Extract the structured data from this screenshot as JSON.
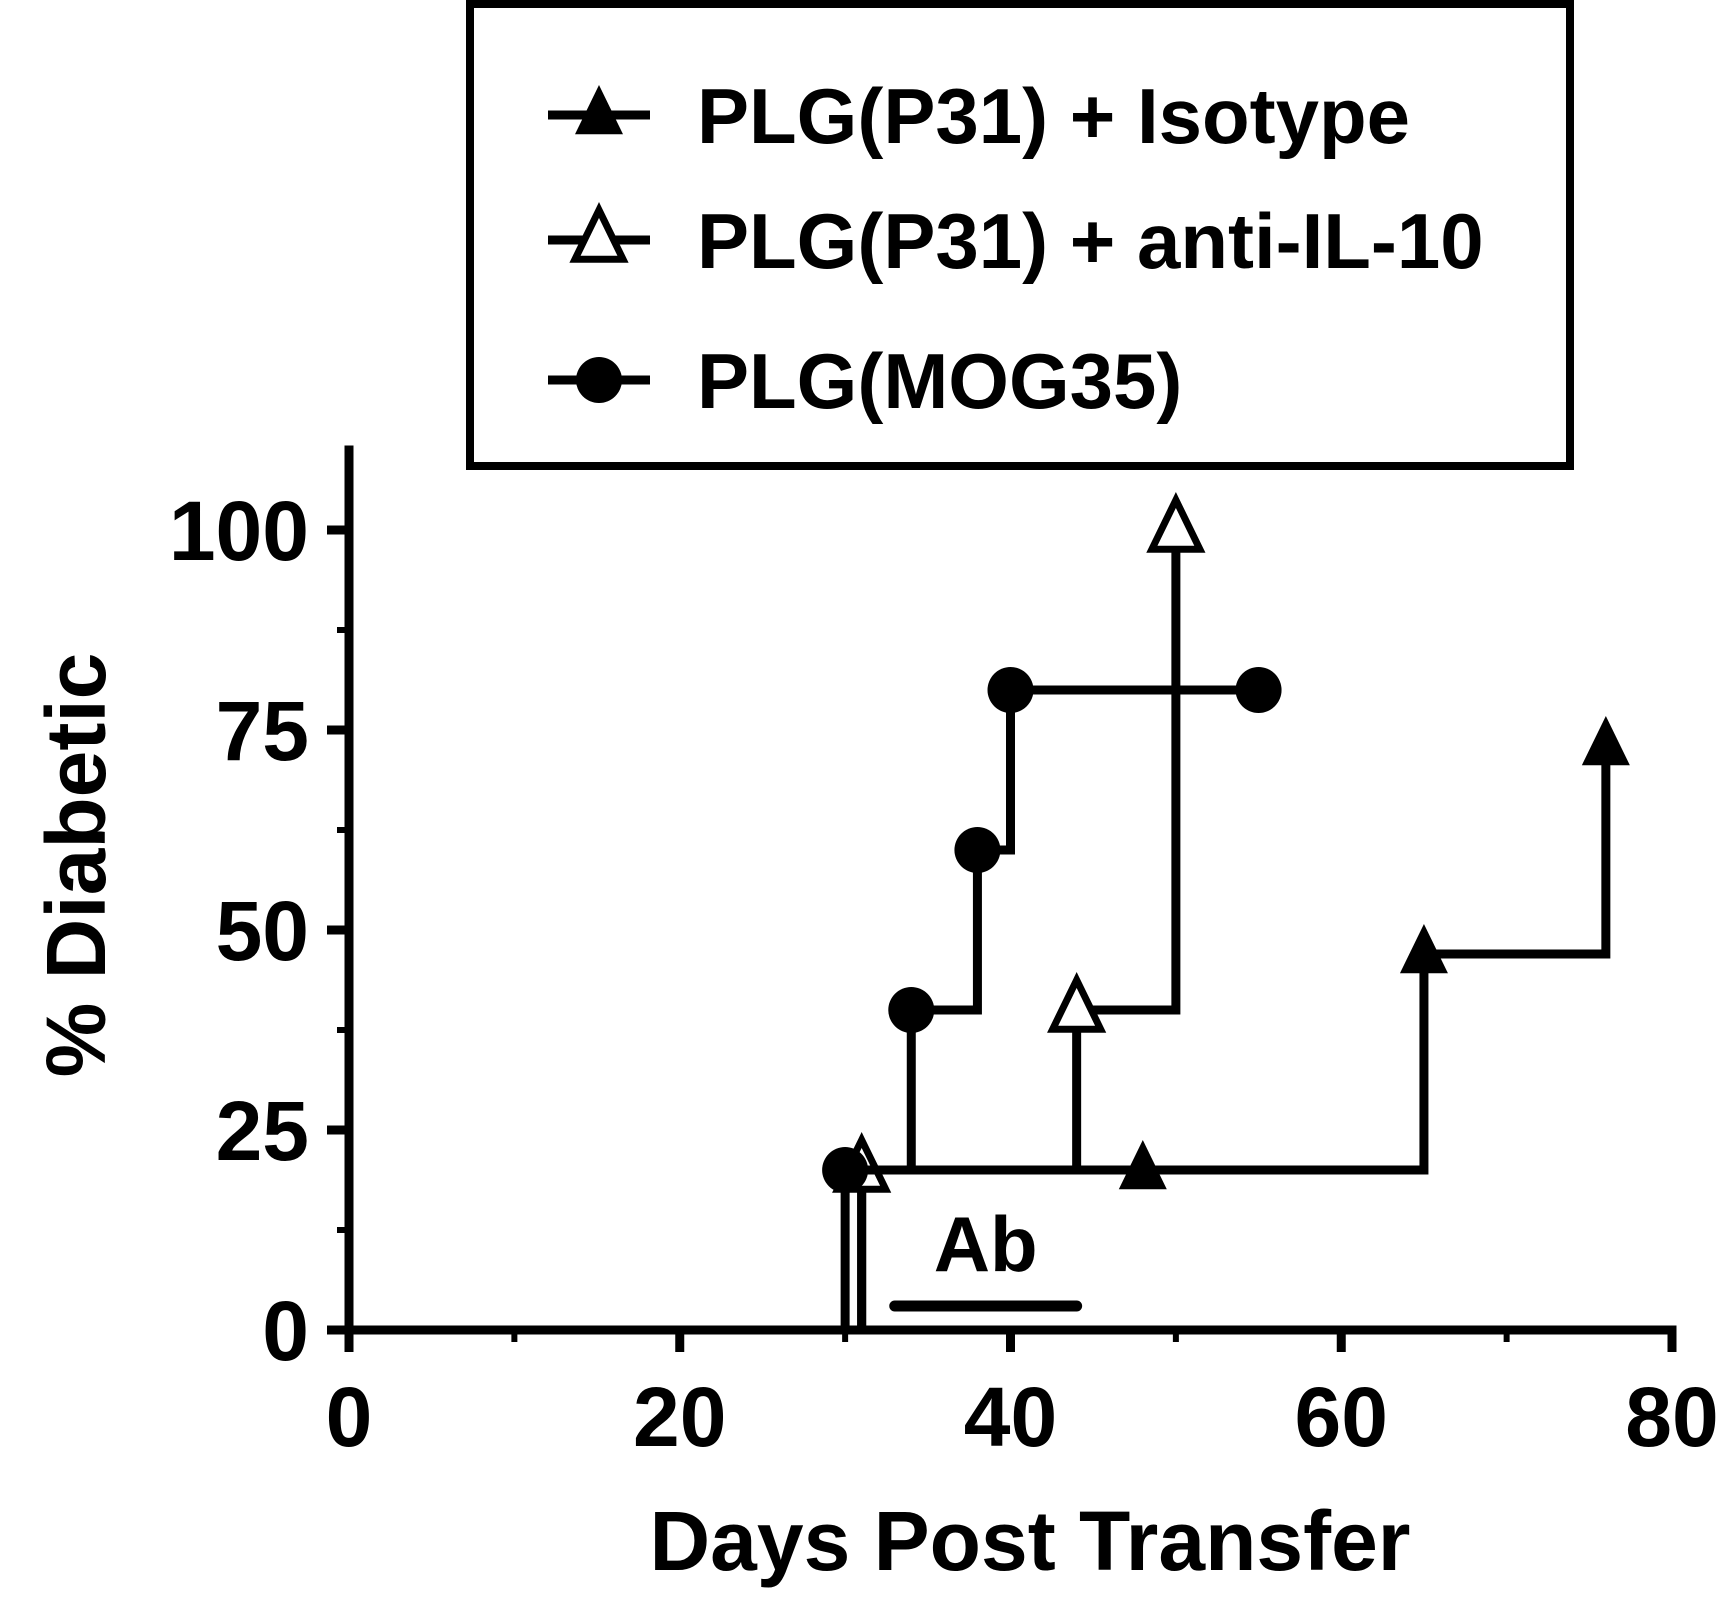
{
  "chart_data": {
    "type": "line",
    "step": true,
    "xlabel": "Days Post Transfer",
    "ylabel": "% Diabetic",
    "xlim": [
      0,
      80
    ],
    "ylim": [
      0,
      110
    ],
    "xticks": [
      0,
      20,
      40,
      60,
      80
    ],
    "yticks": [
      0,
      25,
      50,
      75,
      100
    ],
    "x_minor_ticks": [
      10,
      30,
      50,
      70
    ],
    "y_minor_ticks": [
      12.5,
      37.5,
      62.5,
      87.5
    ],
    "grid": false,
    "legend_position": "top",
    "annotation": {
      "label": "Ab",
      "x_start": 33,
      "x_end": 44,
      "y": 3
    },
    "series": [
      {
        "name": "PLG(P31) + Isotype",
        "marker": "triangle-filled",
        "x": [
          31,
          48,
          65,
          76
        ],
        "y": [
          20,
          20,
          47,
          73
        ]
      },
      {
        "name": "PLG(P31) + anti-IL-10",
        "marker": "triangle-open",
        "x": [
          31,
          44,
          50
        ],
        "y": [
          20,
          40,
          100
        ]
      },
      {
        "name": "PLG(MOG35)",
        "marker": "circle-filled",
        "x": [
          30,
          34,
          38,
          40,
          55
        ],
        "y": [
          20,
          40,
          60,
          80,
          80
        ]
      }
    ]
  }
}
